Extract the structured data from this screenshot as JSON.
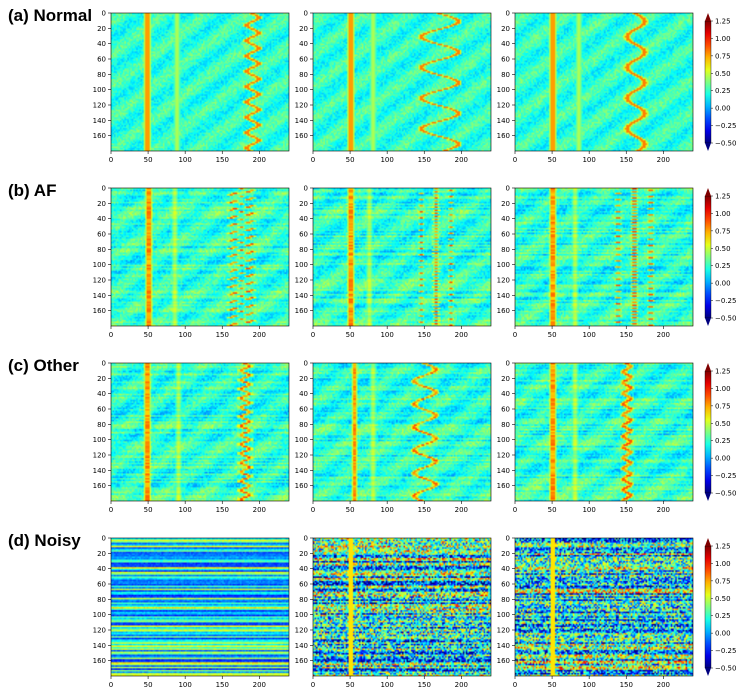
{
  "figure": {
    "rows": [
      {
        "label": "(a) Normal",
        "class": "Normal"
      },
      {
        "label": "(b) AF",
        "class": "AF"
      },
      {
        "label": "(c) Other",
        "class": "Other"
      },
      {
        "label": "(d) Noisy",
        "class": "Noisy"
      }
    ]
  },
  "chart_data": {
    "type": "heatmap",
    "grid": "4x3 panels",
    "x_ticks": [
      0,
      50,
      100,
      150,
      200
    ],
    "y_ticks": [
      0,
      20,
      40,
      60,
      80,
      100,
      120,
      140,
      160
    ],
    "xlim": [
      0,
      240
    ],
    "ylim": [
      180,
      0
    ],
    "colormap": "jet",
    "colorbar": {
      "range": [
        -0.5,
        1.25
      ],
      "ticks": [
        -0.5,
        -0.25,
        0.0,
        0.25,
        0.5,
        0.75,
        1.0,
        1.25
      ],
      "tick_labels": [
        "−0.50",
        "−0.25",
        "0.00",
        "0.25",
        "0.50",
        "0.75",
        "1.00",
        "1.25"
      ],
      "extend": "both"
    },
    "panels": [
      {
        "row": "(a) Normal",
        "col": 1,
        "r_peak_x": 48,
        "secondary_band_x": 88,
        "wave": {
          "center": 190,
          "amplitude": 8,
          "period": 20
        }
      },
      {
        "row": "(a) Normal",
        "col": 2,
        "r_peak_x": 50,
        "secondary_band_x": 80,
        "wave": {
          "center": 170,
          "amplitude": 25,
          "period": 40
        }
      },
      {
        "row": "(a) Normal",
        "col": 3,
        "r_peak_x": 50,
        "secondary_band_x": 85,
        "wave": {
          "center": 162,
          "amplitude": 12,
          "period": 40
        }
      },
      {
        "row": "(b) AF",
        "col": 1,
        "r_peak_x": 50,
        "secondary_band_x": 85,
        "wave": {
          "center": 175,
          "amplitude": 15,
          "period": 10
        }
      },
      {
        "row": "(b) AF",
        "col": 2,
        "r_peak_x": 50,
        "secondary_band_x": 75,
        "wave": {
          "center": 165,
          "amplitude": 20,
          "period": 8
        }
      },
      {
        "row": "(b) AF",
        "col": 3,
        "r_peak_x": 50,
        "secondary_band_x": 80,
        "wave": {
          "center": 160,
          "amplitude": 22,
          "period": 8
        }
      },
      {
        "row": "(c) Other",
        "col": 1,
        "r_peak_x": 48,
        "secondary_band_x": 90,
        "wave": {
          "center": 180,
          "amplitude": 6,
          "period": 12
        }
      },
      {
        "row": "(c) Other",
        "col": 2,
        "r_peak_x": 55,
        "secondary_band_x": 80,
        "wave": {
          "center": 150,
          "amplitude": 15,
          "period": 30
        }
      },
      {
        "row": "(c) Other",
        "col": 3,
        "r_peak_x": 50,
        "secondary_band_x": 80,
        "wave": {
          "center": 150,
          "amplitude": 5,
          "period": 14
        }
      },
      {
        "row": "(d) Noisy",
        "col": 1,
        "r_peak_x": null,
        "secondary_band_x": null,
        "wave": null
      },
      {
        "row": "(d) Noisy",
        "col": 2,
        "r_peak_x": 50,
        "secondary_band_x": null,
        "wave": null
      },
      {
        "row": "(d) Noisy",
        "col": 3,
        "r_peak_x": 50,
        "secondary_band_x": 140,
        "wave": null
      }
    ]
  }
}
